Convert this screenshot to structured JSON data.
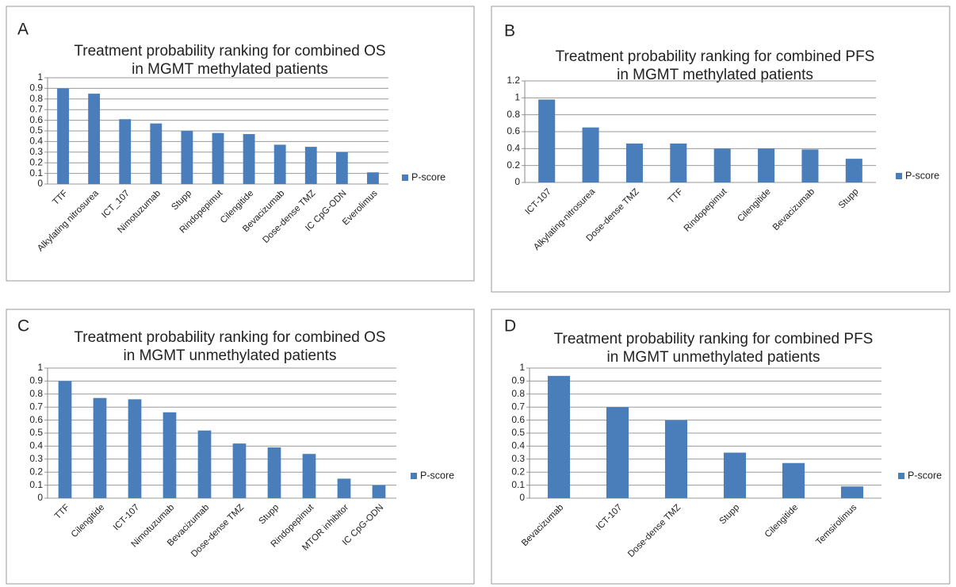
{
  "chart_data": [
    {
      "type": "bar",
      "label": "A",
      "title": [
        "Treatment probability ranking for combined OS",
        "in MGMT methylated patients"
      ],
      "categories": [
        "TTF",
        "Alkylating nitrosurea",
        "ICT_107",
        "Nimotuzumab",
        "Stupp",
        "Rindopepimut",
        "Cilengitide",
        "Bevacizumab",
        "Dose-dense TMZ",
        "IC CpG-ODN",
        "Everolimus"
      ],
      "series": [
        {
          "name": "P-score",
          "color": "#4a7ebb",
          "values": [
            0.9,
            0.85,
            0.61,
            0.57,
            0.5,
            0.48,
            0.47,
            0.37,
            0.35,
            0.3,
            0.11
          ]
        }
      ],
      "ylim": [
        0,
        1
      ],
      "yticks": [
        0,
        0.1,
        0.2,
        0.3,
        0.4,
        0.5,
        0.6,
        0.7,
        0.8,
        0.9,
        1
      ],
      "grid": true,
      "legend": "right"
    },
    {
      "type": "bar",
      "label": "B",
      "title": [
        "Treatment probability ranking for combined PFS",
        "in MGMT methylated patients"
      ],
      "categories": [
        "ICT-107",
        "Alkylating-nitrosurea",
        "Dose-dense TMZ",
        "TTF",
        "Rindopepimut",
        "Cilengitide",
        "Bevacizumab",
        "Stupp"
      ],
      "series": [
        {
          "name": "P-score",
          "color": "#4a7ebb",
          "values": [
            0.98,
            0.65,
            0.46,
            0.46,
            0.4,
            0.4,
            0.39,
            0.28
          ]
        }
      ],
      "ylim": [
        0,
        1.2
      ],
      "yticks": [
        0,
        0.2,
        0.4,
        0.6,
        0.8,
        1,
        1.2
      ],
      "grid": true,
      "legend": "right"
    },
    {
      "type": "bar",
      "label": "C",
      "title": [
        "Treatment probability ranking for combined OS",
        "in MGMT unmethylated patients"
      ],
      "categories": [
        "TTF",
        "Cilengitide",
        "ICT-107",
        "Nimotuzumab",
        "Bevacizumab",
        "Dose-dense TMZ",
        "Stupp",
        "Rindopepimut",
        "MTOR inhibitor",
        "IC CpG-ODN"
      ],
      "series": [
        {
          "name": "P-score",
          "color": "#4a7ebb",
          "values": [
            0.9,
            0.77,
            0.76,
            0.66,
            0.52,
            0.42,
            0.39,
            0.34,
            0.15,
            0.1
          ]
        }
      ],
      "ylim": [
        0,
        1
      ],
      "yticks": [
        0,
        0.1,
        0.2,
        0.3,
        0.4,
        0.5,
        0.6,
        0.7,
        0.8,
        0.9,
        1
      ],
      "grid": true,
      "legend": "right"
    },
    {
      "type": "bar",
      "label": "D",
      "title": [
        "Treatment probability ranking for combined PFS",
        "in MGMT unmethylated patients"
      ],
      "categories": [
        "Bevacizumab",
        "ICT-107",
        "Dose-dense TMZ",
        "Stupp",
        "Cilengitide",
        "Temsirolimus"
      ],
      "series": [
        {
          "name": "P-score",
          "color": "#4a7ebb",
          "values": [
            0.94,
            0.7,
            0.6,
            0.35,
            0.27,
            0.09
          ]
        }
      ],
      "ylim": [
        0,
        1
      ],
      "yticks": [
        0,
        0.1,
        0.2,
        0.3,
        0.4,
        0.5,
        0.6,
        0.7,
        0.8,
        0.9,
        1
      ],
      "grid": true,
      "legend": "right"
    }
  ]
}
